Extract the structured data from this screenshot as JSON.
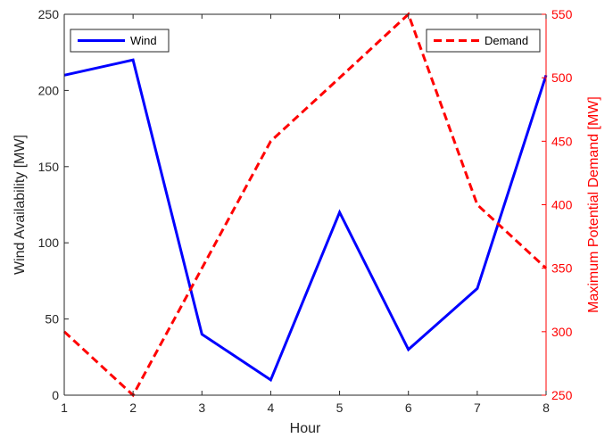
{
  "chart_data": {
    "type": "line",
    "x": [
      1,
      2,
      3,
      4,
      5,
      6,
      7,
      8
    ],
    "xlabel": "Hour",
    "xlim": [
      1,
      8
    ],
    "xticks": [
      "1",
      "2",
      "3",
      "4",
      "5",
      "6",
      "7",
      "8"
    ],
    "grid": false,
    "left_axis": {
      "label": "Wind Availability [MW]",
      "ylim": [
        0,
        250
      ],
      "ticks": [
        "0",
        "50",
        "100",
        "150",
        "200",
        "250"
      ],
      "color": "#262626"
    },
    "right_axis": {
      "label": "Maximum Potential Demand [MW]",
      "ylim": [
        250,
        550
      ],
      "ticks": [
        "250",
        "300",
        "350",
        "400",
        "450",
        "500",
        "550"
      ],
      "color": "#ff0000"
    },
    "series": [
      {
        "name": "Wind",
        "axis": "left",
        "color": "#0000ff",
        "style": "solid",
        "legend": "top-left",
        "values": [
          210,
          220,
          40,
          10,
          120,
          30,
          70,
          210
        ]
      },
      {
        "name": "Demand",
        "axis": "right",
        "color": "#ff0000",
        "style": "dashed",
        "legend": "top-right",
        "values": [
          300,
          250,
          350,
          450,
          500,
          550,
          400,
          350
        ]
      }
    ]
  }
}
